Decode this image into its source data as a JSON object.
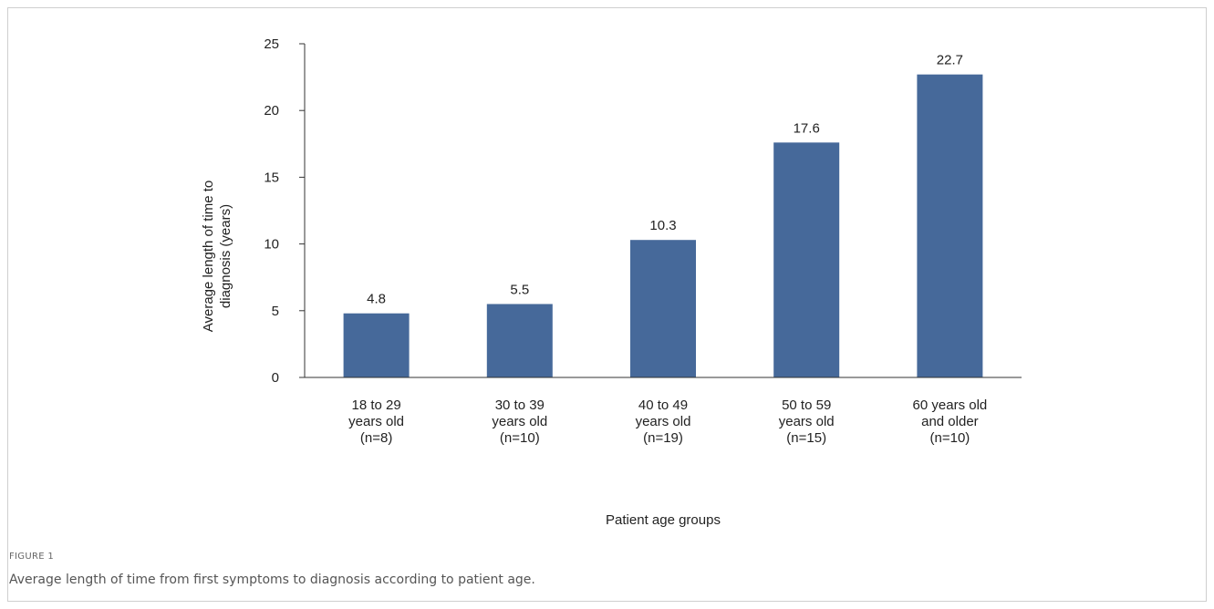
{
  "chart_data": {
    "type": "bar",
    "categories": [
      [
        "18 to 29",
        "years old",
        "(n=8)"
      ],
      [
        "30 to 39",
        "years old",
        "(n=10)"
      ],
      [
        "40 to 49",
        "years old",
        "(n=19)"
      ],
      [
        "50 to 59",
        "years old",
        "(n=15)"
      ],
      [
        "60 years old",
        "and older",
        "(n=10)"
      ]
    ],
    "values": [
      4.8,
      5.5,
      10.3,
      17.6,
      22.7
    ],
    "value_labels": [
      "4.8",
      "5.5",
      "10.3",
      "17.6",
      "22.7"
    ],
    "ylabel": [
      "Average length of time to",
      "diagnosis (years)"
    ],
    "xlabel": "Patient age groups",
    "ylim": [
      0,
      25
    ],
    "yticks": [
      0,
      5,
      10,
      15,
      20,
      25
    ],
    "grid": false,
    "bar_color": "#46699a"
  },
  "figure": {
    "label": "FIGURE 1",
    "caption": "Average length of time from first symptoms to diagnosis according to patient age."
  }
}
